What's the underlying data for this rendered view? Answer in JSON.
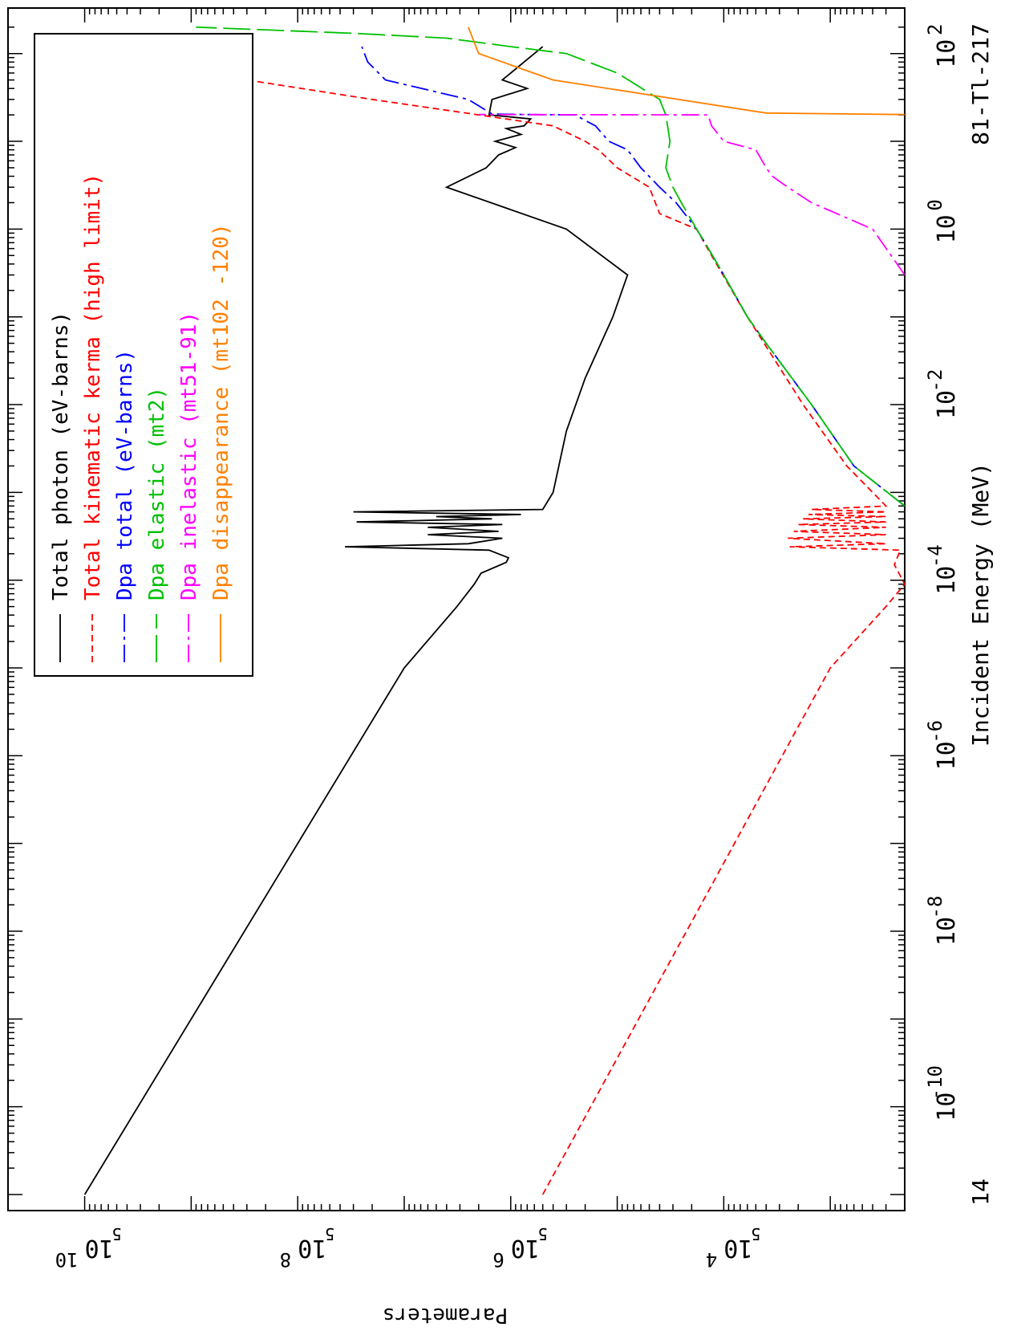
{
  "chart_data": {
    "type": "line",
    "material_label": "81-Tl-217",
    "x_axis": {
      "label": "Incident Energy (MeV)",
      "scale": "log",
      "range": [
        1e-11,
        200
      ],
      "ticks": [
        {
          "value": 1e-10,
          "mantissa": "10",
          "exp": "-10"
        },
        {
          "value": 1e-08,
          "mantissa": "10",
          "exp": "-8"
        },
        {
          "value": 1e-06,
          "mantissa": "10",
          "exp": "-6"
        },
        {
          "value": 0.0001,
          "mantissa": "10",
          "exp": "-4"
        },
        {
          "value": 0.01,
          "mantissa": "10",
          "exp": "-2"
        },
        {
          "value": 1,
          "mantissa": "10",
          "exp": "0"
        },
        {
          "value": 100,
          "mantissa": "10",
          "exp": "2"
        }
      ],
      "first_label": "14"
    },
    "y_axis": {
      "label": "Parameters",
      "scale": "log",
      "range": [
        200,
        12000000000.0
      ],
      "ticks": [
        {
          "value": 10000.0,
          "mantissa": "10",
          "exp": "4"
        },
        {
          "value": 1000000.0,
          "mantissa": "10",
          "exp": "6"
        },
        {
          "value": 100000000.0,
          "mantissa": "10",
          "exp": "8"
        },
        {
          "value": 10000000000.0,
          "mantissa": "10",
          "exp": "10"
        }
      ],
      "minor_labels": [
        {
          "value": 5000.0,
          "text": "5"
        },
        {
          "value": 500000.0,
          "text": "5"
        },
        {
          "value": 50000000.0,
          "text": "5"
        },
        {
          "value": 5000000000.0,
          "text": "5"
        }
      ]
    },
    "legend_position": "top-left",
    "series": [
      {
        "name": "Total photon (eV-barns)",
        "color": "#000000",
        "dash": "solid",
        "points": [
          [
            1e-11,
            10000000000.0
          ],
          [
            1e-07,
            100000000.0
          ],
          [
            1e-05,
            10000000.0
          ],
          [
            5e-05,
            3200000.0
          ],
          [
            9e-05,
            2200000.0
          ],
          [
            0.00012,
            1900000.0
          ],
          [
            0.00016,
            1100000.0
          ],
          [
            0.00018,
            1050000.0
          ],
          [
            0.00022,
            1600000.0
          ],
          [
            0.00024,
            36000000.0
          ],
          [
            0.00026,
            2500000.0
          ],
          [
            0.0003,
            1200000.0
          ],
          [
            0.00033,
            6000000.0
          ],
          [
            0.00036,
            1300000.0
          ],
          [
            0.0004,
            6000000.0
          ],
          [
            0.00043,
            1200000.0
          ],
          [
            0.00046,
            28000000.0
          ],
          [
            0.0005,
            1500000.0
          ],
          [
            0.00053,
            5000000.0
          ],
          [
            0.00056,
            800000.0
          ],
          [
            0.0006,
            30000000.0
          ],
          [
            0.00064,
            500000.0
          ],
          [
            0.001,
            400000.0
          ],
          [
            0.005,
            300000.0
          ],
          [
            0.02,
            200000.0
          ],
          [
            0.1,
            110000.0
          ],
          [
            0.3,
            80000.0
          ],
          [
            1.0,
            300000.0
          ],
          [
            3.0,
            4000000.0
          ],
          [
            5,
            1700000.0
          ],
          [
            7,
            1300000.0
          ],
          [
            8.5,
            900000.0
          ],
          [
            10,
            1400000.0
          ],
          [
            12,
            800000.0
          ],
          [
            14,
            1100000.0
          ],
          [
            15,
            750000.0
          ],
          [
            18,
            650000.0
          ],
          [
            20,
            1600000.0
          ],
          [
            30,
            1500000.0
          ],
          [
            40,
            700000.0
          ],
          [
            50,
            1200000.0
          ],
          [
            120,
            500000.0
          ]
        ]
      },
      {
        "name": "Total kinematic kerma (high limit)",
        "color": "#ff0000",
        "dash": "short",
        "points": [
          [
            1e-11,
            500000.0
          ],
          [
            1e-05,
            1000.0
          ],
          [
            5e-05,
            300.0
          ],
          [
            9e-05,
            200.0
          ],
          [
            0.00015,
            250.0
          ],
          [
            0.00022,
            220.0
          ],
          [
            0.00024,
            2400.0
          ],
          [
            0.00026,
            300.0
          ],
          [
            0.0003,
            2500.0
          ],
          [
            0.00033,
            300.0
          ],
          [
            0.00036,
            2200.0
          ],
          [
            0.0004,
            300.0
          ],
          [
            0.00043,
            2000.0
          ],
          [
            0.00046,
            300.0
          ],
          [
            0.0005,
            1800.0
          ],
          [
            0.00053,
            300.0
          ],
          [
            0.00056,
            1600.0
          ],
          [
            0.0006,
            300.0
          ],
          [
            0.00064,
            1500.0
          ],
          [
            0.0007,
            300.0
          ],
          [
            0.002,
            700
          ],
          [
            0.01,
            1800.0
          ],
          [
            0.1,
            6000.0
          ],
          [
            0.5,
            13000.0
          ],
          [
            1.0,
            18000.0
          ],
          [
            1.5,
            40000.0
          ],
          [
            3.0,
            50000.0
          ],
          [
            5.0,
            100000.0
          ],
          [
            8,
            150000.0
          ],
          [
            10,
            200000.0
          ],
          [
            15,
            400000.0
          ],
          [
            20,
            2000000.0
          ],
          [
            30,
            20000000.0
          ],
          [
            50,
            300000000.0
          ],
          [
            120,
            1000000000.0
          ]
        ]
      },
      {
        "name": "Dpa total (eV-barns)",
        "color": "#0000ff",
        "dash": "dashdot",
        "points": [
          [
            0.0007,
            200
          ],
          [
            0.002,
            600
          ],
          [
            0.01,
            1500.0
          ],
          [
            0.05,
            4000.0
          ],
          [
            0.1,
            6000.0
          ],
          [
            0.3,
            10000.0
          ],
          [
            0.7,
            15000.0
          ],
          [
            1.0,
            18000.0
          ],
          [
            2.0,
            28000.0
          ],
          [
            3.0,
            40000.0
          ],
          [
            5.0,
            60000.0
          ],
          [
            8,
            80000.0
          ],
          [
            10,
            120000.0
          ],
          [
            15,
            160000.0
          ],
          [
            20,
            250000.0
          ],
          [
            20.2,
            700000.0
          ],
          [
            20.5,
            1500000.0
          ],
          [
            30,
            2500000.0
          ],
          [
            50,
            15000000.0
          ],
          [
            80,
            22000000.0
          ],
          [
            120,
            25000000.0
          ]
        ]
      },
      {
        "name": "Dpa elastic (mt2)",
        "color": "#00c000",
        "dash": "longdash",
        "points": [
          [
            0.0007,
            200
          ],
          [
            0.002,
            600
          ],
          [
            0.01,
            1500.0
          ],
          [
            0.05,
            4000.0
          ],
          [
            0.1,
            6000.0
          ],
          [
            0.3,
            10000.0
          ],
          [
            0.7,
            15000.0
          ],
          [
            1.0,
            18000.0
          ],
          [
            2.0,
            25000.0
          ],
          [
            3.0,
            30000.0
          ],
          [
            5.0,
            35000.0
          ],
          [
            10,
            32000.0
          ],
          [
            20,
            35000.0
          ],
          [
            30,
            40000.0
          ],
          [
            60,
            100000.0
          ],
          [
            100,
            300000.0
          ],
          [
            120,
            1000000.0
          ],
          [
            150,
            4000000.0
          ],
          [
            170,
            30000000.0
          ],
          [
            200,
            900000000.0
          ]
        ]
      },
      {
        "name": "Dpa inelastic (mt51-91)",
        "color": "#ff00ff",
        "dash": "dashdot",
        "points": [
          [
            0.3,
            200
          ],
          [
            1.0,
            400
          ],
          [
            2.0,
            1500.0
          ],
          [
            3.0,
            2500.0
          ],
          [
            3.5,
            3000.0
          ],
          [
            4.0,
            3500.0
          ],
          [
            5.0,
            4000.0
          ],
          [
            8,
            5000.0
          ],
          [
            10,
            10000.0
          ],
          [
            15,
            13000.0
          ],
          [
            20,
            14000.0
          ],
          [
            20.2,
            2000000.0
          ]
        ]
      },
      {
        "name": "Dpa disappearance (mt102 -120)",
        "color": "#ff8000",
        "dash": "solid",
        "points": [
          [
            20.2,
            200
          ],
          [
            21,
            4000.0
          ],
          [
            50,
            400000.0
          ],
          [
            100,
            2000000.0
          ],
          [
            200,
            2500000.0
          ]
        ]
      }
    ]
  }
}
